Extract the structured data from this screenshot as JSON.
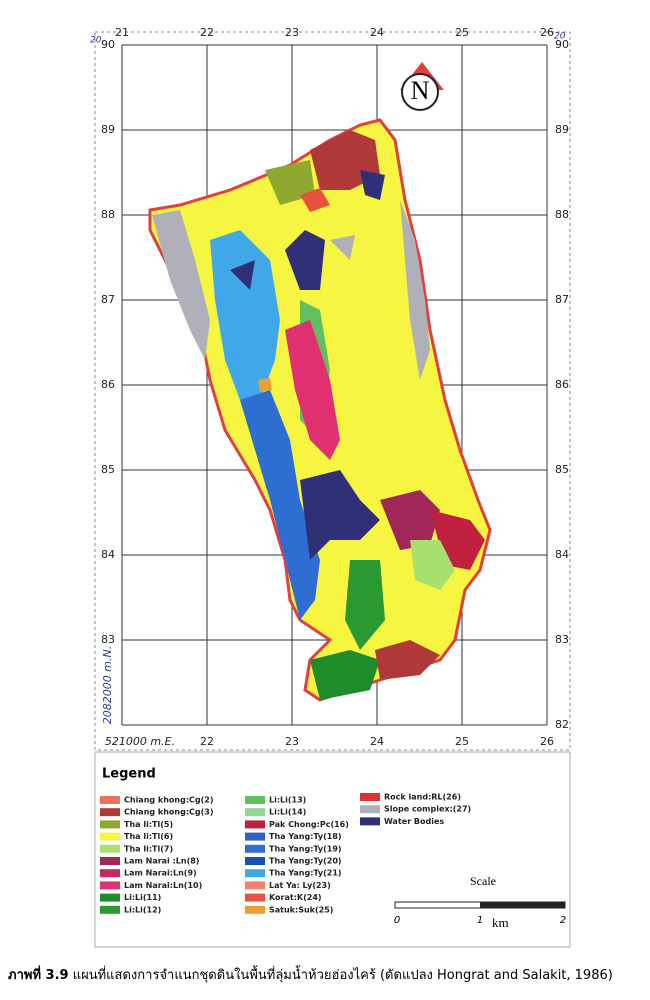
{
  "map": {
    "corner_marks": [
      "20",
      "20"
    ],
    "north": "N",
    "x_labels_top": [
      "21",
      "22",
      "23",
      "24",
      "25",
      "26"
    ],
    "x_labels_bottom": [
      "521000 m.E.",
      "22",
      "23",
      "24",
      "25",
      "26"
    ],
    "y_labels_left": [
      "90",
      "89",
      "88",
      "87",
      "86",
      "85",
      "84",
      "83"
    ],
    "y_labels_right": [
      "90",
      "89",
      "88",
      "87",
      "86",
      "85",
      "84",
      "83",
      "82"
    ],
    "y_axis_note": "2082000 m.N."
  },
  "legend": {
    "title": "Legend",
    "columns": [
      [
        {
          "label": "Chiang khong:Cg(2)",
          "color": "#e8735a"
        },
        {
          "label": "Chiang khong:Cg(3)",
          "color": "#b03838"
        },
        {
          "label": "Tha li:Tl(5)",
          "color": "#8fa832"
        },
        {
          "label": "Tha li:Tl(6)",
          "color": "#f5f542"
        },
        {
          "label": "Tha li:Tl(7)",
          "color": "#a8e070"
        },
        {
          "label": "Lam Narai :Ln(8)",
          "color": "#a02858"
        },
        {
          "label": "Lam Narai:Ln(9)",
          "color": "#c8285a"
        },
        {
          "label": "Lam Narai:Ln(10)",
          "color": "#e03070"
        },
        {
          "label": "Li:Li(11)",
          "color": "#1e8c2a"
        },
        {
          "label": "Li:Li(12)",
          "color": "#2a9a30"
        }
      ],
      [
        {
          "label": "Li:Li(13)",
          "color": "#60c060"
        },
        {
          "label": "Li:Li(14)",
          "color": "#90d890"
        },
        {
          "label": "Pak Chong:Pc(16)",
          "color": "#c02040"
        },
        {
          "label": "Tha Yang:Ty(18)",
          "color": "#3060c0"
        },
        {
          "label": "Tha Yang:Ty(19)",
          "color": "#2e6ed0"
        },
        {
          "label": "Tha Yang:Ty(20)",
          "color": "#1c50b0"
        },
        {
          "label": "Tha Yang:Ty(21)",
          "color": "#40a8e8"
        },
        {
          "label": "Lat Ya: Ly(23)",
          "color": "#f08070"
        },
        {
          "label": "Korat:K(24)",
          "color": "#e85040"
        },
        {
          "label": "Satuk:Suk(25)",
          "color": "#e8a030"
        }
      ],
      [
        {
          "label": "Rock land:RL(26)",
          "color": "#e03030"
        },
        {
          "label": "Slope complex:(27)",
          "color": "#b0b0b8"
        },
        {
          "label": "Water Bodies",
          "color": "#303078"
        }
      ]
    ]
  },
  "scale": {
    "title": "Scale",
    "ticks": [
      "0",
      "1",
      "2"
    ],
    "unit": "km"
  },
  "caption": {
    "number": "ภาพที่ 3.9",
    "text": "แผนที่แสดงการจำแนกชุดดินในพื้นที่ลุ่มน้ำห้วยฮ่องไคร้ (ดัดแปลง Hongrat and Salakit, 1986)"
  }
}
